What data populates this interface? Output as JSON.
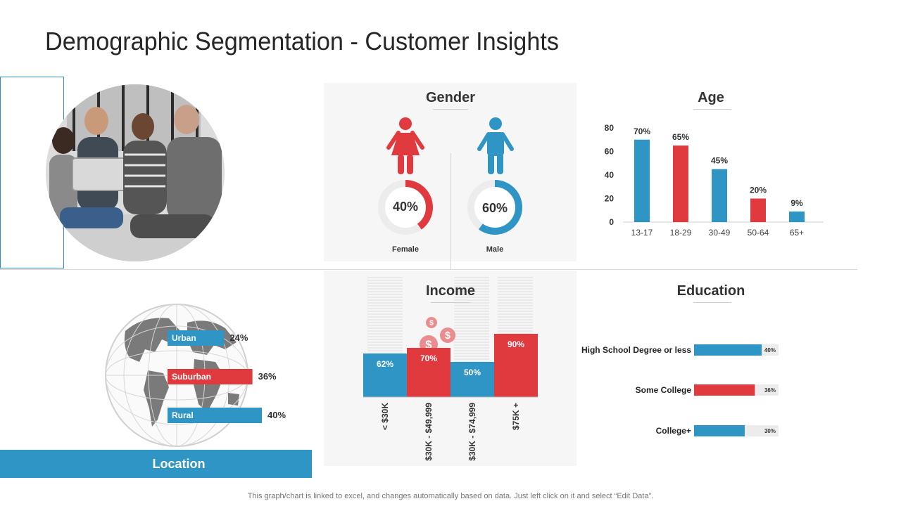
{
  "title": "Demographic Segmentation - Customer Insights",
  "footnote": "This graph/chart is linked to excel, and changes automatically  based on data. Just left click on it and select “Edit Data”.",
  "colors": {
    "blue": "#2E95C4",
    "red": "#E0393E",
    "gray_track": "#ececec"
  },
  "gender": {
    "title": "Gender",
    "female": {
      "label": "Female",
      "value_label": "40%",
      "value": 40,
      "icon": "female-person-icon"
    },
    "male": {
      "label": "Male",
      "value_label": "60%",
      "value": 60,
      "icon": "male-person-icon"
    }
  },
  "location": {
    "title": "Location",
    "icon": "globe-icon",
    "items": [
      {
        "label": "Urban",
        "value_label": "24%",
        "value": 24,
        "color": "#2E95C4"
      },
      {
        "label": "Suburban",
        "value_label": "36%",
        "value": 36,
        "color": "#E0393E"
      },
      {
        "label": "Rural",
        "value_label": "40%",
        "value": 40,
        "color": "#2E95C4"
      }
    ]
  },
  "chart_data": [
    {
      "id": "age",
      "type": "bar",
      "title": "Age",
      "categories": [
        "13-17",
        "18-29",
        "30-49",
        "50-64",
        "65+"
      ],
      "values": [
        70,
        65,
        45,
        20,
        9
      ],
      "data_labels": [
        "70%",
        "65%",
        "45%",
        "20%",
        "9%"
      ],
      "colors": [
        "#2E95C4",
        "#E0393E",
        "#2E95C4",
        "#E0393E",
        "#2E95C4"
      ],
      "yticks": [
        0,
        20,
        40,
        60,
        80
      ],
      "ylim": [
        0,
        80
      ],
      "grid": false
    },
    {
      "id": "income",
      "type": "bar",
      "title": "Income",
      "categories": [
        "< $30K",
        "$30K - $49,999",
        "$30K - $74,999",
        "$75K +"
      ],
      "values": [
        62,
        70,
        50,
        90
      ],
      "data_labels": [
        "62%",
        "70%",
        "50%",
        "90%"
      ],
      "colors": [
        "#2E95C4",
        "#E0393E",
        "#2E95C4",
        "#E0393E"
      ],
      "icon": "dollar-coins-icon"
    },
    {
      "id": "education",
      "type": "bar",
      "orientation": "horizontal",
      "title": "Education",
      "categories": [
        "High School Degree or less",
        "Some College",
        "College+"
      ],
      "values": [
        40,
        36,
        30
      ],
      "data_labels": [
        "40%",
        "36%",
        "30%"
      ],
      "colors": [
        "#2E95C4",
        "#E0393E",
        "#2E95C4"
      ]
    }
  ]
}
